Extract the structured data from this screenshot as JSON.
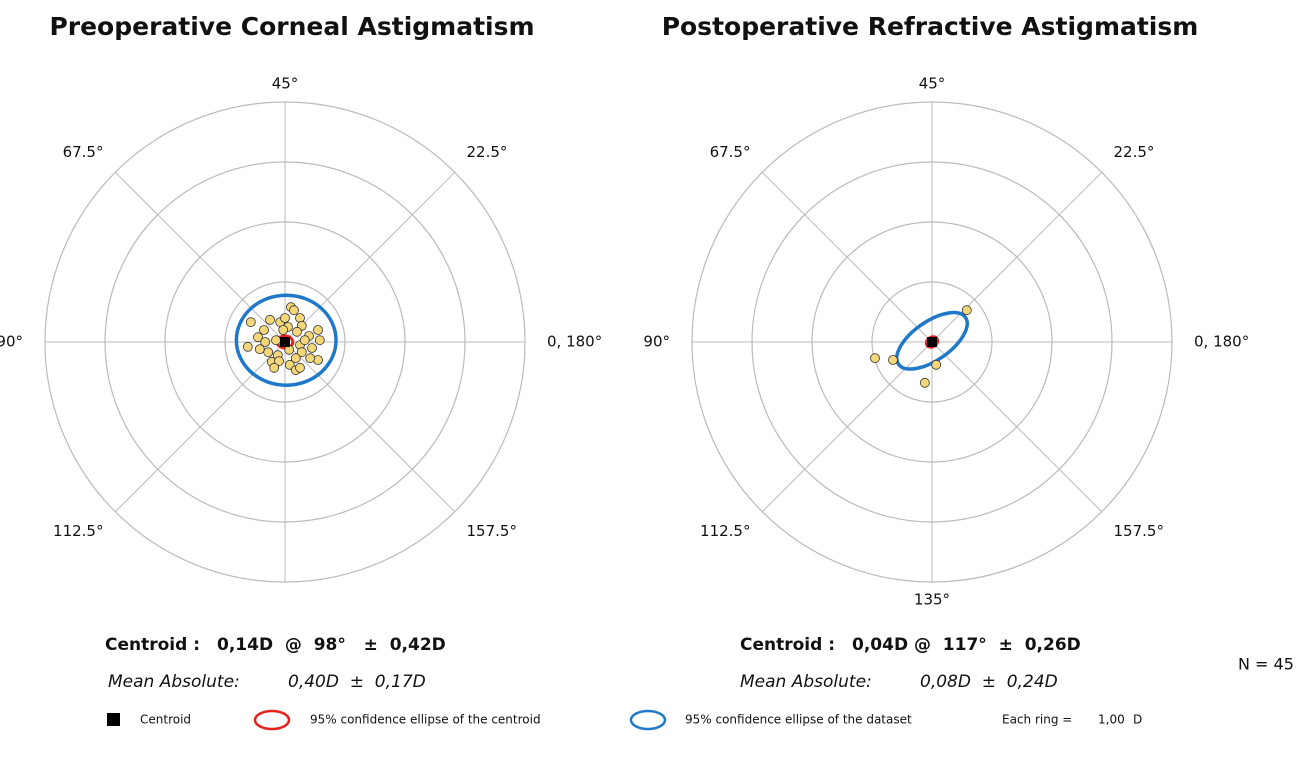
{
  "chart_data": [
    {
      "type": "polar-scatter",
      "title": "Preoperative Corneal Astigmatism",
      "angle_labels": [
        "0, 180°",
        "22.5°",
        "45°",
        "67.5°",
        "90°",
        "112.5°",
        null,
        "157.5°"
      ],
      "rlim": [
        0,
        4
      ],
      "rticks": [
        1,
        2,
        3,
        4
      ],
      "grid": true,
      "color": "#f5d77a",
      "x": [
        0.1,
        0.15,
        -0.25,
        -0.57,
        -0.08,
        0.25,
        0.05,
        0.55,
        0.4,
        0.58,
        -0.45,
        -0.33,
        -0.15,
        0.25,
        0.45,
        -0.42,
        -0.28,
        -0.12,
        0.07,
        0.28,
        0.55,
        0.08,
        0.18,
        0.25,
        -0.22,
        -0.1,
        -0.03,
        0.28,
        -0.62,
        0.42,
        0.2,
        -0.35,
        0.0,
        0.33,
        -0.18,
        0.18
      ],
      "values": [
        0.58,
        0.53,
        0.37,
        0.33,
        0.33,
        0.4,
        0.25,
        0.2,
        0.1,
        0.03,
        0.08,
        0.0,
        0.03,
        -0.05,
        -0.1,
        -0.12,
        -0.17,
        -0.22,
        -0.13,
        -0.17,
        -0.3,
        -0.38,
        -0.47,
        -0.43,
        -0.33,
        -0.32,
        0.2,
        0.27,
        -0.08,
        -0.27,
        0.17,
        0.2,
        0.4,
        0.03,
        -0.43,
        -0.27
      ],
      "centroid": {
        "x": 0.0,
        "y": 0.0,
        "color": "#000000"
      },
      "ellipses": [
        {
          "color": "#1f78c8",
          "cx": 0.02,
          "cy": 0.03,
          "rx": 0.83,
          "ry": 0.75,
          "angle": 0
        },
        {
          "color": "#e8201c",
          "cx": 0.0,
          "cy": 0.0,
          "rx": 0.13,
          "ry": 0.1,
          "angle": 0
        }
      ],
      "centroid_label": "Centroid :",
      "centroid_value": "0,14D  @  98°   ±  0,42D",
      "mean_label": "Mean Absolute:",
      "mean_value": "0,40D  ±  0,17D"
    },
    {
      "type": "polar-scatter",
      "title": "Postoperative Refractive Astigmatism",
      "angle_labels": [
        "0, 180°",
        "22.5°",
        "45°",
        "67.5°",
        "90°",
        "112.5°",
        "135°",
        "157.5°"
      ],
      "rlim": [
        0,
        4
      ],
      "rticks": [
        1,
        2,
        3,
        4
      ],
      "grid": true,
      "color": "#f5d77a",
      "x": [
        0.58,
        -0.95,
        -0.65,
        0.07,
        -0.12
      ],
      "values": [
        0.53,
        -0.27,
        -0.3,
        -0.38,
        -0.68
      ],
      "centroid": {
        "x": 0.0,
        "y": 0.0,
        "color": "#000000"
      },
      "ellipses": [
        {
          "color": "#1f78c8",
          "cx": 0.0,
          "cy": 0.02,
          "rx": 0.68,
          "ry": 0.32,
          "angle": 35
        },
        {
          "color": "#e8201c",
          "cx": 0.0,
          "cy": 0.0,
          "rx": 0.1,
          "ry": 0.08,
          "angle": 35
        }
      ],
      "centroid_label": "Centroid :",
      "centroid_value": "0,04D @  117°  ±  0,26D",
      "mean_label": "Mean Absolute:",
      "mean_value": "0,08D  ±  0,24D"
    }
  ],
  "n_label": "N =  45",
  "legend": {
    "centroid": "Centroid",
    "centroid_ellipse": "95% confidence ellipse of  the centroid",
    "dataset_ellipse": "95% confidence ellipse of the dataset",
    "ring_label": "Each ring =",
    "ring_value": "1,00",
    "ring_unit": "D"
  }
}
